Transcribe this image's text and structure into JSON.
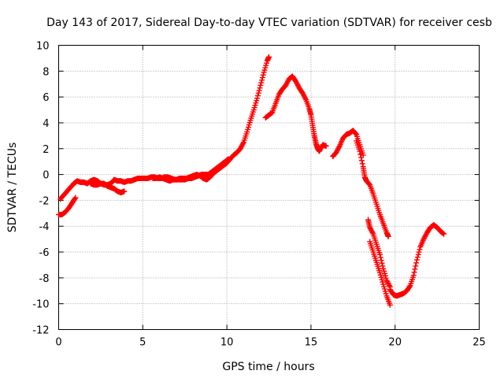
{
  "chart_data": {
    "type": "scatter",
    "title": "Day 143 of 2017, Sidereal Day-to-day VTEC variation (SDTVAR) for receiver cesb",
    "xlabel": "GPS time / hours",
    "ylabel": "SDTVAR / TECUs",
    "xlim": [
      0,
      25
    ],
    "ylim": [
      -12,
      10
    ],
    "xticks": [
      0,
      5,
      10,
      15,
      20,
      25
    ],
    "yticks": [
      -12,
      -10,
      -8,
      -6,
      -4,
      -2,
      0,
      2,
      4,
      6,
      8,
      10
    ],
    "grid": true,
    "marker": "plus",
    "series_color": "#ff0000",
    "series": [
      {
        "x": [
          0.0,
          0.2,
          0.4,
          0.6,
          0.8,
          1.0
        ],
        "y": [
          -3.1,
          -3.1,
          -2.9,
          -2.6,
          -2.2,
          -1.8
        ]
      },
      {
        "x": [
          0.1,
          0.3,
          0.5,
          0.7,
          0.9,
          1.1,
          1.3,
          1.5,
          1.7,
          1.9,
          2.1,
          2.3,
          2.5,
          2.7,
          2.9,
          3.1,
          3.3,
          3.5,
          3.7,
          3.9,
          4.1,
          4.3,
          4.5,
          4.7,
          4.9,
          5.1,
          5.3,
          5.5,
          5.7,
          5.9,
          6.1,
          6.3,
          6.5,
          6.7,
          6.9,
          7.1,
          7.3,
          7.5,
          7.7,
          7.9,
          8.1,
          8.3,
          8.5,
          8.7,
          8.9,
          9.1,
          9.3,
          9.5,
          9.7,
          9.9,
          10.1
        ],
        "y": [
          -1.9,
          -1.6,
          -1.3,
          -1.0,
          -0.7,
          -0.5,
          -0.6,
          -0.6,
          -0.7,
          -0.5,
          -0.4,
          -0.5,
          -0.7,
          -0.8,
          -0.8,
          -0.7,
          -0.4,
          -0.5,
          -0.5,
          -0.6,
          -0.5,
          -0.5,
          -0.4,
          -0.3,
          -0.3,
          -0.3,
          -0.3,
          -0.2,
          -0.2,
          -0.3,
          -0.3,
          -0.2,
          -0.2,
          -0.3,
          -0.4,
          -0.4,
          -0.4,
          -0.4,
          -0.3,
          -0.3,
          -0.2,
          -0.1,
          0.0,
          0.0,
          0.0,
          0.2,
          0.4,
          0.6,
          0.8,
          1.0,
          1.2
        ]
      },
      {
        "x": [
          1.9,
          2.1,
          2.3,
          2.5,
          2.7,
          2.9,
          3.1,
          3.3,
          3.5,
          3.7,
          3.9
        ],
        "y": [
          -0.7,
          -0.8,
          -0.8,
          -0.7,
          -0.7,
          -0.9,
          -1.0,
          -1.1,
          -1.3,
          -1.4,
          -1.3
        ]
      },
      {
        "x": [
          5.6,
          5.8,
          6.0,
          6.2,
          6.4,
          6.6,
          6.8,
          7.0,
          7.2,
          7.4,
          7.6,
          7.8,
          8.0,
          8.2,
          8.4,
          8.6,
          8.8,
          9.0,
          9.2,
          9.4,
          9.6,
          9.8,
          10.0,
          10.2,
          10.4,
          10.6,
          10.8,
          11.0,
          11.2,
          11.4,
          11.6,
          11.8,
          12.0,
          12.2,
          12.4,
          12.5
        ],
        "y": [
          -0.3,
          -0.3,
          -0.2,
          -0.3,
          -0.4,
          -0.5,
          -0.4,
          -0.4,
          -0.3,
          -0.3,
          -0.3,
          -0.2,
          -0.1,
          0.0,
          -0.1,
          -0.3,
          -0.4,
          -0.2,
          0.1,
          0.3,
          0.5,
          0.7,
          0.9,
          1.2,
          1.5,
          1.7,
          2.0,
          2.5,
          3.3,
          4.2,
          5.0,
          5.9,
          6.9,
          7.9,
          8.8,
          9.1
        ]
      },
      {
        "x": [
          12.3,
          12.5,
          12.7,
          12.9,
          13.1,
          13.3,
          13.5,
          13.7,
          13.9,
          14.1,
          14.3,
          14.5,
          14.7,
          14.9,
          15.0,
          15.1,
          15.2,
          15.3,
          15.4,
          15.5,
          15.7,
          15.9
        ],
        "y": [
          4.4,
          4.6,
          4.8,
          5.5,
          6.2,
          6.6,
          6.9,
          7.4,
          7.6,
          7.2,
          6.7,
          6.3,
          5.8,
          5.1,
          4.6,
          3.8,
          3.0,
          2.4,
          2.0,
          1.8,
          2.3,
          2.2
        ]
      },
      {
        "x": [
          16.3,
          16.5,
          16.7,
          16.9,
          17.1,
          17.3,
          17.5,
          17.7,
          17.9,
          18.1
        ],
        "y": [
          1.4,
          1.7,
          2.2,
          2.8,
          3.1,
          3.2,
          3.4,
          3.1,
          2.3,
          1.5
        ]
      },
      {
        "x": [
          17.7,
          17.9,
          18.1,
          18.2,
          18.3,
          18.5,
          18.7,
          18.9,
          19.1,
          19.3,
          19.5,
          19.6
        ],
        "y": [
          2.6,
          1.8,
          0.6,
          -0.2,
          -0.5,
          -0.8,
          -1.5,
          -2.3,
          -3.1,
          -3.8,
          -4.5,
          -4.8
        ]
      },
      {
        "x": [
          18.4,
          18.5,
          18.7,
          18.9,
          19.1,
          19.3,
          19.5,
          19.7
        ],
        "y": [
          -3.5,
          -4.1,
          -4.6,
          -5.4,
          -6.2,
          -7.3,
          -8.2,
          -8.7
        ]
      },
      {
        "x": [
          18.5,
          18.7,
          18.9,
          19.1,
          19.3,
          19.5,
          19.7
        ],
        "y": [
          -5.2,
          -6.0,
          -6.8,
          -7.6,
          -8.5,
          -9.4,
          -10.1
        ]
      },
      {
        "x": [
          19.7,
          19.9,
          20.1,
          20.3,
          20.5,
          20.7,
          20.9,
          21.1,
          21.3,
          21.5,
          21.7,
          21.9,
          22.1,
          22.3,
          22.5,
          22.7,
          22.9
        ],
        "y": [
          -8.9,
          -9.3,
          -9.4,
          -9.3,
          -9.2,
          -9.0,
          -8.6,
          -7.8,
          -6.6,
          -5.6,
          -5.0,
          -4.5,
          -4.1,
          -3.9,
          -4.1,
          -4.4,
          -4.6
        ]
      }
    ]
  }
}
